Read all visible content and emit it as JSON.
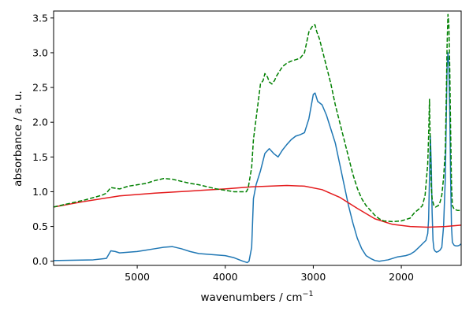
{
  "chart_data": {
    "type": "line",
    "xlabel_main": "wavenumbers / cm",
    "xlabel_sup": "−1",
    "ylabel": "absorbance / a. u.",
    "xlim": [
      5950,
      1320
    ],
    "ylim": [
      -0.06,
      3.6
    ],
    "x_reversed": true,
    "xticks": [
      5000,
      4000,
      3000,
      2000
    ],
    "yticks": [
      0.0,
      0.5,
      1.0,
      1.5,
      2.0,
      2.5,
      3.0,
      3.5
    ],
    "grid": false,
    "colors": {
      "blue": "#1f77b4",
      "red": "#e41a1c",
      "green": "#008000"
    },
    "series": [
      {
        "color": "#1f77b4",
        "style": "solid",
        "x": [
          5950,
          5500,
          5350,
          5300,
          5250,
          5200,
          5100,
          5000,
          4900,
          4800,
          4700,
          4600,
          4500,
          4400,
          4300,
          4200,
          4100,
          4000,
          3900,
          3800,
          3750,
          3730,
          3700,
          3680,
          3650,
          3600,
          3550,
          3500,
          3450,
          3400,
          3350,
          3300,
          3250,
          3200,
          3150,
          3100,
          3050,
          3000,
          2980,
          2950,
          2900,
          2850,
          2800,
          2750,
          2700,
          2650,
          2600,
          2550,
          2500,
          2450,
          2400,
          2350,
          2300,
          2250,
          2200,
          2150,
          2100,
          2050,
          2000,
          1950,
          1900,
          1850,
          1800,
          1760,
          1720,
          1700,
          1690,
          1680,
          1670,
          1660,
          1650,
          1640,
          1630,
          1620,
          1600,
          1580,
          1560,
          1540,
          1520,
          1500,
          1490,
          1480,
          1470,
          1460,
          1450,
          1440,
          1430,
          1420,
          1400,
          1380,
          1360,
          1340,
          1320
        ],
        "y": [
          0.01,
          0.02,
          0.04,
          0.15,
          0.14,
          0.12,
          0.13,
          0.14,
          0.16,
          0.18,
          0.2,
          0.21,
          0.18,
          0.14,
          0.11,
          0.1,
          0.09,
          0.08,
          0.05,
          0.0,
          -0.02,
          0.0,
          0.2,
          0.9,
          1.1,
          1.3,
          1.55,
          1.62,
          1.55,
          1.5,
          1.6,
          1.68,
          1.75,
          1.8,
          1.82,
          1.85,
          2.05,
          2.4,
          2.42,
          2.3,
          2.25,
          2.1,
          1.9,
          1.7,
          1.4,
          1.1,
          0.8,
          0.55,
          0.33,
          0.18,
          0.08,
          0.04,
          0.01,
          0.0,
          0.01,
          0.02,
          0.04,
          0.06,
          0.07,
          0.08,
          0.1,
          0.14,
          0.2,
          0.25,
          0.3,
          0.4,
          0.6,
          1.2,
          1.8,
          1.4,
          0.7,
          0.3,
          0.18,
          0.15,
          0.13,
          0.14,
          0.16,
          0.2,
          0.5,
          1.2,
          2.0,
          2.8,
          3.0,
          2.8,
          2.2,
          1.2,
          0.5,
          0.27,
          0.23,
          0.22,
          0.22,
          0.23,
          0.25
        ]
      },
      {
        "color": "#e41a1c",
        "style": "solid",
        "x": [
          5950,
          5600,
          5200,
          4800,
          4400,
          4000,
          3700,
          3500,
          3300,
          3100,
          2900,
          2700,
          2500,
          2300,
          2100,
          1900,
          1700,
          1500,
          1320
        ],
        "y": [
          0.78,
          0.86,
          0.94,
          0.98,
          1.01,
          1.04,
          1.07,
          1.08,
          1.09,
          1.08,
          1.03,
          0.92,
          0.76,
          0.61,
          0.53,
          0.5,
          0.49,
          0.5,
          0.52
        ]
      },
      {
        "color": "#008000",
        "style": "dashed",
        "x": [
          5950,
          5600,
          5400,
          5350,
          5300,
          5250,
          5200,
          5100,
          5000,
          4900,
          4800,
          4700,
          4600,
          4500,
          4400,
          4300,
          4200,
          4100,
          4000,
          3900,
          3800,
          3760,
          3740,
          3700,
          3680,
          3650,
          3620,
          3600,
          3570,
          3550,
          3520,
          3500,
          3470,
          3440,
          3420,
          3400,
          3350,
          3300,
          3250,
          3200,
          3150,
          3100,
          3050,
          3000,
          2980,
          2960,
          2930,
          2900,
          2850,
          2800,
          2750,
          2700,
          2650,
          2600,
          2550,
          2500,
          2450,
          2400,
          2350,
          2300,
          2250,
          2200,
          2100,
          2000,
          1900,
          1850,
          1800,
          1760,
          1730,
          1700,
          1690,
          1680,
          1670,
          1660,
          1650,
          1640,
          1630,
          1610,
          1580,
          1560,
          1540,
          1520,
          1500,
          1490,
          1480,
          1470,
          1460,
          1450,
          1440,
          1430,
          1420,
          1400,
          1380,
          1360,
          1340,
          1320
        ],
        "y": [
          0.78,
          0.88,
          0.95,
          0.98,
          1.06,
          1.05,
          1.04,
          1.08,
          1.1,
          1.12,
          1.16,
          1.19,
          1.18,
          1.15,
          1.12,
          1.1,
          1.07,
          1.04,
          1.02,
          1.0,
          1.0,
          1.0,
          1.05,
          1.35,
          1.75,
          2.05,
          2.35,
          2.55,
          2.6,
          2.7,
          2.65,
          2.58,
          2.55,
          2.6,
          2.66,
          2.7,
          2.8,
          2.85,
          2.88,
          2.9,
          2.92,
          3.0,
          3.3,
          3.4,
          3.4,
          3.3,
          3.2,
          3.05,
          2.8,
          2.55,
          2.25,
          2.0,
          1.75,
          1.5,
          1.25,
          1.05,
          0.9,
          0.8,
          0.73,
          0.66,
          0.61,
          0.58,
          0.57,
          0.58,
          0.62,
          0.7,
          0.75,
          0.8,
          0.95,
          1.4,
          1.8,
          2.33,
          1.6,
          1.1,
          0.9,
          0.85,
          0.8,
          0.78,
          0.8,
          0.85,
          0.95,
          1.2,
          1.6,
          2.3,
          3.1,
          3.55,
          3.4,
          2.8,
          1.9,
          1.1,
          0.8,
          0.75,
          0.74,
          0.73,
          0.73,
          0.73
        ]
      }
    ]
  }
}
